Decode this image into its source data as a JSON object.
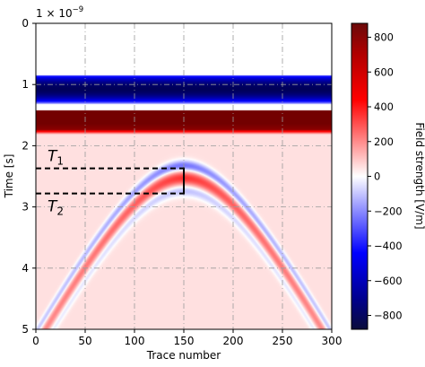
{
  "chart_data": {
    "type": "heatmap",
    "title": "",
    "xlabel": "Trace number",
    "ylabel": "Time [s]",
    "y_offset_text": "1 × 10",
    "y_offset_exponent": "−9",
    "xlim": [
      0,
      300
    ],
    "ylim": [
      5,
      0
    ],
    "x_ticks": [
      0,
      50,
      100,
      150,
      200,
      250,
      300
    ],
    "y_ticks": [
      0,
      1,
      2,
      3,
      4,
      5
    ],
    "grid": true,
    "colorbar": {
      "label": "Field strength [V/m]",
      "range": [
        -880,
        880
      ],
      "ticks": [
        800,
        600,
        400,
        200,
        0,
        -200,
        -400,
        -600,
        -800
      ],
      "tick_labels": [
        "800",
        "600",
        "400",
        "200",
        "0",
        "−200",
        "−400",
        "−600",
        "−800"
      ],
      "colormap": "seismic",
      "colors": [
        "#0a0d6b",
        "#0000ff",
        "#ffffff",
        "#ff0000",
        "#7a0a0a"
      ]
    },
    "direct_wave": {
      "negative_band_time": [
        0.85,
        1.42
      ],
      "positive_band_time": [
        1.42,
        1.75
      ]
    },
    "hyperbola": {
      "apex_trace": 150,
      "apex_time": 2.35,
      "velocity_ratio": 0.03,
      "positive_lag_time": 0.18,
      "negative_lag_time": 0.38
    },
    "annotations": [
      {
        "label": "T",
        "subscript": "1",
        "time": 2.37
      },
      {
        "label": "T",
        "subscript": "2",
        "time": 2.78
      }
    ],
    "bracket_trace": 150
  }
}
